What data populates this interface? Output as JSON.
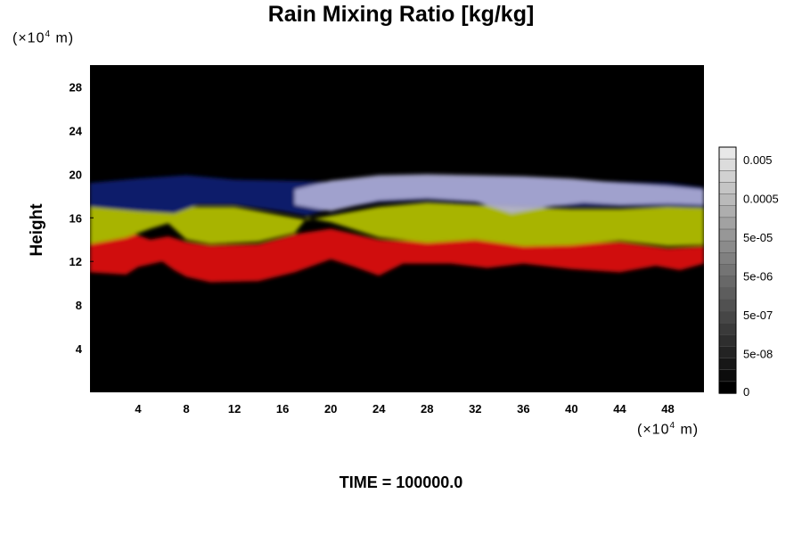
{
  "chart_data": {
    "type": "heatmap",
    "title": "Rain Mixing Ratio [kg/kg]",
    "ylabel": "Height",
    "xunit": "(×10⁴ m)",
    "yunit": "(×10⁴ m)",
    "xlim": [
      0,
      51
    ],
    "ylim": [
      0,
      30
    ],
    "x_ticks": [
      "4",
      "8",
      "12",
      "16",
      "20",
      "24",
      "28",
      "32",
      "36",
      "40",
      "44",
      "48"
    ],
    "y_ticks": [
      "4",
      "8",
      "12",
      "16",
      "20",
      "24",
      "28"
    ],
    "colorbar": {
      "labels": [
        "0.005",
        "0.0005",
        "5e-05",
        "5e-06",
        "5e-07",
        "5e-08",
        "0"
      ]
    },
    "layers": [
      {
        "color": "#0a1a6a",
        "name": "upper"
      },
      {
        "color": "#b0b0d8",
        "name": "upper-light"
      },
      {
        "color": "#a8b400",
        "name": "middle"
      },
      {
        "color": "#d01010",
        "name": "lower"
      }
    ]
  },
  "footer": {
    "time_label": "TIME = 100000.0"
  }
}
